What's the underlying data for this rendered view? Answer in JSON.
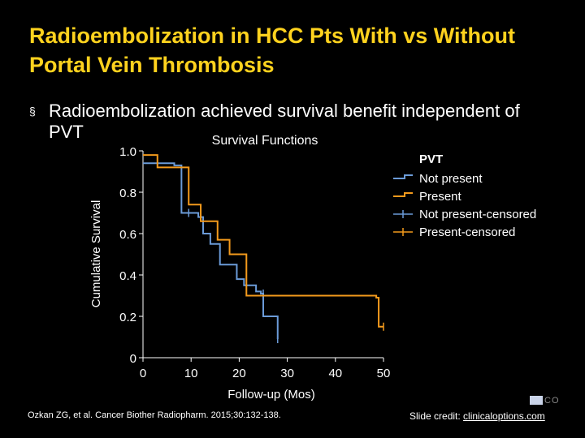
{
  "slide": {
    "title": "Radioembolization in HCC Pts With vs Without Portal Vein Thrombosis",
    "bullet": "Radioembolization achieved survival benefit independent of PVT",
    "bullet_mark": "§",
    "citation": "Ozkan ZG, et al. Cancer Biother Radiopharm. 2015;30:132-138.",
    "credit_prefix": "Slide credit: ",
    "credit_link": "clinicaloptions.com",
    "logo_text": "CO"
  },
  "chart_data": {
    "type": "line",
    "step": true,
    "title": "Survival Functions",
    "xlabel": "Follow-up (Mos)",
    "ylabel": "Cumulative Survival",
    "xlim": [
      0,
      50
    ],
    "ylim": [
      0,
      1
    ],
    "xticks": [
      0,
      10,
      20,
      30,
      40,
      50
    ],
    "yticks": [
      0,
      0.2,
      0.4,
      0.6,
      0.8,
      1.0
    ],
    "ytick_labels": [
      "0",
      "0.2",
      "0.4",
      "0.6",
      "0.8",
      "1.0"
    ],
    "grid": false,
    "legend": {
      "title": "PVT",
      "placement": "top-right",
      "entries": [
        {
          "label": "Not present",
          "color": "#6b9bd8",
          "kind": "step"
        },
        {
          "label": "Present",
          "color": "#f39a1c",
          "kind": "step"
        },
        {
          "label": "Not present-censored",
          "color": "#6b9bd8",
          "kind": "censor"
        },
        {
          "label": "Present-censored",
          "color": "#f39a1c",
          "kind": "censor"
        }
      ]
    },
    "series": [
      {
        "name": "Not present",
        "color": "#6b9bd8",
        "x": [
          0,
          6.5,
          8.0,
          11.5,
          12.5,
          14.0,
          16.0,
          18.0,
          19.5,
          21.0,
          23.5,
          24.5,
          25.0,
          27.5,
          28.0
        ],
        "y": [
          0.94,
          0.93,
          0.7,
          0.68,
          0.6,
          0.55,
          0.45,
          0.45,
          0.38,
          0.35,
          0.32,
          0.31,
          0.2,
          0.2,
          0.09
        ],
        "censored": [
          [
            9.5,
            0.7
          ],
          [
            25.0,
            0.31
          ],
          [
            28.0,
            0.09
          ]
        ]
      },
      {
        "name": "Present",
        "color": "#f39a1c",
        "x": [
          0,
          3.0,
          9.5,
          12.0,
          15.5,
          18.0,
          21.5,
          48.5,
          49.0
        ],
        "y": [
          0.98,
          0.92,
          0.74,
          0.66,
          0.57,
          0.5,
          0.3,
          0.29,
          0.15
        ],
        "censored": [
          [
            50.0,
            0.15
          ]
        ]
      }
    ]
  }
}
